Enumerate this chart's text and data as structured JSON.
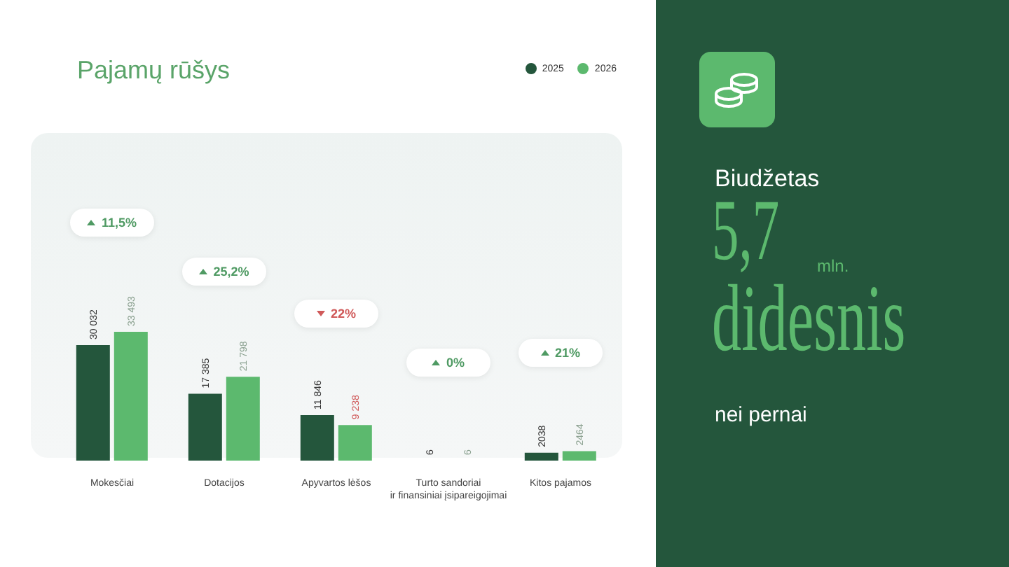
{
  "chart_data": [
    {
      "type": "bar",
      "title": "Pajamų rūšys",
      "categories": [
        "Mokesčiai",
        "Dotacijos",
        "Apyvartos lėšos",
        "Turto sandoriai ir finansiniai įsipareigojimai",
        "Kitos pajamos"
      ],
      "series": [
        {
          "name": "2025",
          "color": "#24563c",
          "values": [
            30032,
            17385,
            11846,
            6,
            2038
          ],
          "value_labels": [
            "30 032",
            "17 385",
            "11 846",
            "6",
            "2038"
          ]
        },
        {
          "name": "2026",
          "color": "#5cb96e",
          "values": [
            33493,
            21798,
            9238,
            6,
            2464
          ],
          "value_labels": [
            "33 493",
            "21 798",
            "9 238",
            "6",
            "2464"
          ]
        }
      ],
      "annotations": [
        "11,5%",
        "25,2%",
        "22%",
        "0%",
        "21%"
      ],
      "legend": "top right"
    },
    {
      "type": "other",
      "annotations": [
        "Biudžetas",
        "5,7",
        "mln.",
        "didesnis",
        "nei pernai"
      ]
    }
  ]
}
